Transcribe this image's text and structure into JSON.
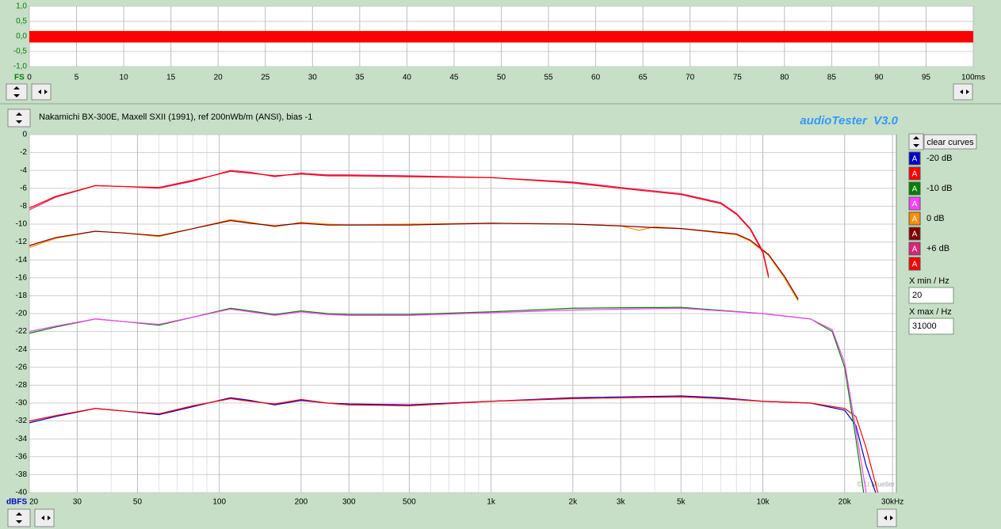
{
  "ui": {
    "title": "Nakamichi BX-300E, Maxell SXII (1991), ref 200nWb/m (ANSI), bias -1",
    "brand": "audioTester  V3.0",
    "clear_button": "clear curves",
    "legend_button": "A",
    "xmin_label": "X min / Hz",
    "xmax_label": "X max / Hz",
    "copyright": "© U.Mueller"
  },
  "chart_data": [
    {
      "type": "band",
      "ylabel": "FS",
      "xlim": [
        0,
        100
      ],
      "xticks": [
        0,
        5,
        10,
        15,
        20,
        25,
        30,
        35,
        40,
        45,
        50,
        55,
        60,
        65,
        70,
        75,
        80,
        85,
        90,
        95,
        {
          "value": 100,
          "label": "100ms"
        }
      ],
      "ylim": [
        -1,
        1
      ],
      "yticks": [
        {
          "value": 1,
          "label": "1,0"
        },
        {
          "value": 0.5,
          "label": "0,5"
        },
        {
          "value": 0,
          "label": "0,0"
        },
        {
          "value": -0.5,
          "label": "-0,5"
        },
        {
          "value": -1,
          "label": "-1,0"
        }
      ],
      "grid": true,
      "series": [
        {
          "color": "#ff0000",
          "x": [
            0,
            100
          ],
          "upper": [
            0.18,
            0.18
          ],
          "lower": [
            -0.2,
            -0.2
          ]
        }
      ]
    },
    {
      "type": "line",
      "ylabel": "dBFS",
      "xscale": "log",
      "xlim": [
        20,
        31000
      ],
      "xticks": [
        20,
        30,
        50,
        100,
        200,
        300,
        500,
        {
          "value": 1000,
          "label": "1k"
        },
        {
          "value": 2000,
          "label": "2k"
        },
        {
          "value": 3000,
          "label": "3k"
        },
        {
          "value": 5000,
          "label": "5k"
        },
        {
          "value": 10000,
          "label": "10k"
        },
        {
          "value": 20000,
          "label": "20k"
        },
        {
          "value": 30000,
          "label": "30kHz"
        }
      ],
      "xminor": [
        40,
        60,
        70,
        80,
        90,
        400,
        600,
        700,
        800,
        900,
        4000,
        6000,
        7000,
        8000,
        9000
      ],
      "ylim": [
        -40,
        0
      ],
      "yticks": [
        0,
        -2,
        -4,
        -6,
        -8,
        -10,
        -12,
        -14,
        -16,
        -18,
        -20,
        -22,
        -24,
        -26,
        -28,
        -30,
        -32,
        -34,
        -36,
        -38,
        -40
      ],
      "grid": true,
      "series": [
        {
          "name": "-20 dB",
          "color": "#0000cc",
          "x": [
            20,
            25,
            35,
            45,
            60,
            80,
            110,
            130,
            160,
            200,
            250,
            300,
            500,
            1000,
            2000,
            5000,
            7000,
            10000,
            15000,
            20000,
            22000,
            24000,
            26000
          ],
          "values": [
            -32.2,
            -31.5,
            -30.6,
            -30.9,
            -31.3,
            -30.4,
            -29.4,
            -29.7,
            -30.2,
            -29.7,
            -30.0,
            -30.1,
            -30.2,
            -29.8,
            -29.4,
            -29.2,
            -29.4,
            -29.8,
            -30.0,
            -30.8,
            -32.5,
            -37,
            -40
          ]
        },
        {
          "name": null,
          "color": "#ff0000",
          "x": [
            20,
            25,
            35,
            45,
            60,
            80,
            110,
            130,
            160,
            200,
            250,
            300,
            500,
            1000,
            2000,
            5000,
            7000,
            10000,
            15000,
            20000,
            22000,
            24000,
            26500
          ],
          "values": [
            -32.0,
            -31.4,
            -30.6,
            -30.9,
            -31.2,
            -30.3,
            -29.5,
            -29.8,
            -30.1,
            -29.6,
            -30.0,
            -30.2,
            -30.3,
            -29.8,
            -29.5,
            -29.3,
            -29.5,
            -29.8,
            -30.0,
            -30.6,
            -31.5,
            -35,
            -40
          ]
        },
        {
          "name": "-10 dB",
          "color": "#008000",
          "x": [
            20,
            25,
            35,
            45,
            60,
            80,
            110,
            130,
            160,
            200,
            250,
            300,
            500,
            1000,
            2000,
            5000,
            10000,
            15000,
            18000,
            20000,
            22000,
            23500
          ],
          "values": [
            -22.2,
            -21.5,
            -20.6,
            -20.9,
            -21.3,
            -20.4,
            -19.4,
            -19.7,
            -20.1,
            -19.7,
            -20.0,
            -20.1,
            -20.1,
            -19.8,
            -19.4,
            -19.3,
            -20.0,
            -20.6,
            -22.0,
            -26,
            -34,
            -40
          ]
        },
        {
          "name": null,
          "color": "#ff40ff",
          "x": [
            20,
            25,
            35,
            45,
            60,
            80,
            110,
            130,
            160,
            200,
            250,
            300,
            500,
            1000,
            2000,
            5000,
            10000,
            15000,
            18000,
            20000,
            22000,
            24000
          ],
          "values": [
            -22.0,
            -21.4,
            -20.6,
            -20.9,
            -21.2,
            -20.4,
            -19.5,
            -19.8,
            -20.2,
            -19.8,
            -20.1,
            -20.2,
            -20.2,
            -19.9,
            -19.6,
            -19.4,
            -20.0,
            -20.6,
            -21.8,
            -25.5,
            -33,
            -40
          ]
        },
        {
          "name": "0 dB",
          "color": "#ff8c00",
          "x": [
            20,
            25,
            35,
            45,
            60,
            80,
            110,
            130,
            160,
            200,
            250,
            300,
            500,
            1000,
            2000,
            3000,
            3500,
            4000,
            5000,
            8000,
            9000,
            10500,
            12000,
            13500
          ],
          "values": [
            -12.6,
            -11.6,
            -10.8,
            -11.0,
            -11.4,
            -10.5,
            -9.5,
            -9.8,
            -10.3,
            -9.8,
            -10.0,
            -10.1,
            -10.0,
            -9.9,
            -10.0,
            -10.2,
            -10.7,
            -10.3,
            -10.5,
            -11.2,
            -11.9,
            -13.5,
            -16.0,
            -18.6
          ]
        },
        {
          "name": null,
          "color": "#800000",
          "x": [
            20,
            25,
            35,
            45,
            60,
            80,
            110,
            130,
            160,
            200,
            250,
            300,
            500,
            1000,
            2000,
            3000,
            3500,
            4000,
            5000,
            8000,
            9000,
            10500,
            12000,
            13500
          ],
          "values": [
            -12.4,
            -11.5,
            -10.8,
            -11.0,
            -11.3,
            -10.5,
            -9.6,
            -9.9,
            -10.2,
            -9.9,
            -10.1,
            -10.1,
            -10.1,
            -9.9,
            -10.0,
            -10.2,
            -10.3,
            -10.4,
            -10.5,
            -11.1,
            -11.8,
            -13.4,
            -15.8,
            -18.4
          ]
        },
        {
          "name": "+6 dB",
          "color": "#e0207a",
          "x": [
            20,
            25,
            35,
            45,
            60,
            80,
            110,
            130,
            160,
            200,
            250,
            300,
            500,
            1000,
            2000,
            3000,
            5000,
            7000,
            8000,
            9000,
            10000,
            10500
          ],
          "values": [
            -8.4,
            -7.0,
            -5.7,
            -5.8,
            -6.0,
            -5.2,
            -4.0,
            -4.2,
            -4.7,
            -4.3,
            -4.5,
            -4.5,
            -4.6,
            -4.8,
            -5.3,
            -5.9,
            -6.6,
            -7.6,
            -8.8,
            -10.5,
            -13.0,
            -15.8
          ]
        },
        {
          "name": null,
          "color": "#ff0000",
          "x": [
            20,
            25,
            35,
            45,
            60,
            80,
            110,
            130,
            160,
            200,
            250,
            300,
            500,
            1000,
            2000,
            3000,
            5000,
            7000,
            8000,
            9000,
            10000,
            10500
          ],
          "values": [
            -8.2,
            -6.9,
            -5.7,
            -5.8,
            -5.9,
            -5.1,
            -4.1,
            -4.3,
            -4.6,
            -4.4,
            -4.6,
            -4.6,
            -4.7,
            -4.8,
            -5.4,
            -6.0,
            -6.7,
            -7.7,
            -8.9,
            -10.6,
            -13.2,
            -16.0
          ]
        }
      ]
    }
  ]
}
